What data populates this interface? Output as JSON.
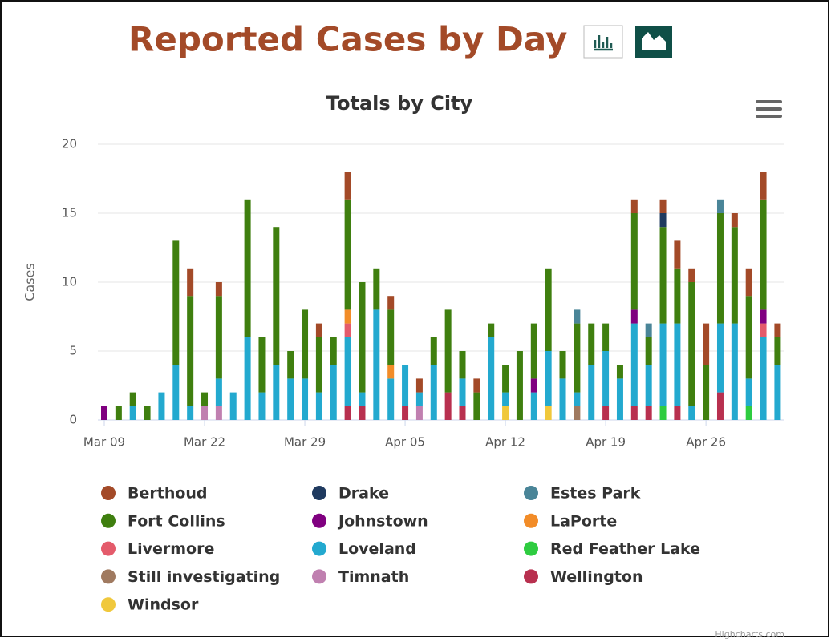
{
  "header": {
    "title": "Reported Cases by Day"
  },
  "chart_data": {
    "type": "stacked_bar",
    "title": "Totals by City",
    "y_label": "Cases",
    "categories": [
      "Mar 09",
      null,
      null,
      null,
      null,
      null,
      null,
      "Mar 22",
      null,
      null,
      null,
      null,
      null,
      null,
      "Mar 29",
      null,
      null,
      null,
      null,
      null,
      null,
      "Apr 05",
      null,
      null,
      null,
      null,
      null,
      null,
      "Apr 12",
      null,
      null,
      null,
      null,
      null,
      null,
      "Apr 19",
      null,
      null,
      null,
      null,
      null,
      null,
      "Apr 26",
      null,
      null,
      null,
      null,
      null
    ],
    "ylim": [
      0,
      20
    ],
    "yticks": [
      0,
      5,
      10,
      15,
      20
    ],
    "grid": true,
    "legend": "bottom",
    "series": [
      {
        "name": "Berthoud",
        "color": "#a34a28",
        "values": [
          0,
          0,
          0,
          0,
          0,
          0,
          2,
          0,
          1,
          0,
          0,
          0,
          0,
          0,
          0,
          1,
          0,
          2,
          0,
          0,
          1,
          0,
          1,
          0,
          0,
          0,
          1,
          0,
          0,
          0,
          0,
          0,
          0,
          0,
          0,
          0,
          0,
          1,
          0,
          1,
          2,
          1,
          3,
          0,
          1,
          2,
          2,
          1
        ]
      },
      {
        "name": "Drake",
        "color": "#1f3a5f",
        "values": [
          0,
          0,
          0,
          0,
          0,
          0,
          0,
          0,
          0,
          0,
          0,
          0,
          0,
          0,
          0,
          0,
          0,
          0,
          0,
          0,
          0,
          0,
          0,
          0,
          0,
          0,
          0,
          0,
          0,
          0,
          0,
          0,
          0,
          0,
          0,
          0,
          0,
          0,
          0,
          1,
          0,
          0,
          0,
          0,
          0,
          0,
          0,
          0
        ]
      },
      {
        "name": "Estes Park",
        "color": "#4a8598",
        "values": [
          0,
          0,
          0,
          0,
          0,
          0,
          0,
          0,
          0,
          0,
          0,
          0,
          0,
          0,
          0,
          0,
          0,
          0,
          0,
          0,
          0,
          0,
          0,
          0,
          0,
          0,
          0,
          0,
          0,
          0,
          0,
          0,
          0,
          1,
          0,
          0,
          0,
          0,
          1,
          0,
          0,
          0,
          0,
          1,
          0,
          0,
          0,
          0
        ]
      },
      {
        "name": "Fort Collins",
        "color": "#3f7f0f",
        "values": [
          0,
          1,
          1,
          1,
          0,
          9,
          8,
          1,
          6,
          0,
          10,
          4,
          10,
          2,
          5,
          4,
          2,
          8,
          8,
          3,
          4,
          0,
          0,
          2,
          6,
          2,
          2,
          1,
          2,
          5,
          4,
          6,
          2,
          5,
          3,
          2,
          1,
          7,
          2,
          7,
          4,
          9,
          4,
          8,
          7,
          6,
          8,
          2
        ]
      },
      {
        "name": "Johnstown",
        "color": "#800080",
        "values": [
          1,
          0,
          0,
          0,
          0,
          0,
          0,
          0,
          0,
          0,
          0,
          0,
          0,
          0,
          0,
          0,
          0,
          0,
          0,
          0,
          0,
          0,
          0,
          0,
          0,
          0,
          0,
          0,
          0,
          0,
          1,
          0,
          0,
          0,
          0,
          0,
          0,
          1,
          0,
          0,
          0,
          0,
          0,
          0,
          0,
          0,
          1,
          0
        ]
      },
      {
        "name": "LaPorte",
        "color": "#f28c28",
        "values": [
          0,
          0,
          0,
          0,
          0,
          0,
          0,
          0,
          0,
          0,
          0,
          0,
          0,
          0,
          0,
          0,
          0,
          1,
          0,
          0,
          1,
          0,
          0,
          0,
          0,
          0,
          0,
          0,
          0,
          0,
          0,
          0,
          0,
          0,
          0,
          0,
          0,
          0,
          0,
          0,
          0,
          0,
          0,
          0,
          0,
          0,
          0,
          0
        ]
      },
      {
        "name": "Livermore",
        "color": "#e45b6b",
        "values": [
          0,
          0,
          0,
          0,
          0,
          0,
          0,
          0,
          0,
          0,
          0,
          0,
          0,
          0,
          0,
          0,
          0,
          1,
          0,
          0,
          0,
          0,
          0,
          0,
          0,
          0,
          0,
          0,
          0,
          0,
          0,
          0,
          0,
          0,
          0,
          0,
          0,
          0,
          0,
          0,
          0,
          0,
          0,
          0,
          0,
          0,
          1,
          0
        ]
      },
      {
        "name": "Loveland",
        "color": "#23a9cf",
        "values": [
          0,
          0,
          1,
          0,
          2,
          4,
          1,
          0,
          2,
          2,
          6,
          2,
          4,
          3,
          3,
          2,
          4,
          5,
          1,
          8,
          3,
          3,
          1,
          4,
          0,
          2,
          0,
          6,
          1,
          0,
          2,
          4,
          3,
          1,
          4,
          4,
          3,
          6,
          3,
          6,
          6,
          1,
          0,
          5,
          7,
          2,
          6,
          4
        ]
      },
      {
        "name": "Red Feather Lake",
        "color": "#2ecc40",
        "values": [
          0,
          0,
          0,
          0,
          0,
          0,
          0,
          0,
          0,
          0,
          0,
          0,
          0,
          0,
          0,
          0,
          0,
          0,
          0,
          0,
          0,
          0,
          0,
          0,
          0,
          0,
          0,
          0,
          0,
          0,
          0,
          0,
          0,
          0,
          0,
          0,
          0,
          0,
          0,
          1,
          0,
          0,
          0,
          0,
          0,
          1,
          0,
          0
        ]
      },
      {
        "name": "Still investigating",
        "color": "#a07a60",
        "values": [
          0,
          0,
          0,
          0,
          0,
          0,
          0,
          0,
          0,
          0,
          0,
          0,
          0,
          0,
          0,
          0,
          0,
          0,
          0,
          0,
          0,
          0,
          0,
          0,
          0,
          0,
          0,
          0,
          0,
          0,
          0,
          0,
          0,
          1,
          0,
          0,
          0,
          0,
          0,
          0,
          0,
          0,
          0,
          0,
          0,
          0,
          0,
          0
        ]
      },
      {
        "name": "Timnath",
        "color": "#c080b0",
        "values": [
          0,
          0,
          0,
          0,
          0,
          0,
          0,
          1,
          1,
          0,
          0,
          0,
          0,
          0,
          0,
          0,
          0,
          0,
          0,
          0,
          0,
          0,
          1,
          0,
          0,
          0,
          0,
          0,
          0,
          0,
          0,
          0,
          0,
          0,
          0,
          0,
          0,
          0,
          0,
          0,
          0,
          0,
          0,
          0,
          0,
          0,
          0,
          0
        ]
      },
      {
        "name": "Wellington",
        "color": "#b8304f",
        "values": [
          0,
          0,
          0,
          0,
          0,
          0,
          0,
          0,
          0,
          0,
          0,
          0,
          0,
          0,
          0,
          0,
          0,
          1,
          1,
          0,
          0,
          1,
          0,
          0,
          2,
          1,
          0,
          0,
          0,
          0,
          0,
          0,
          0,
          0,
          0,
          1,
          0,
          1,
          1,
          0,
          1,
          0,
          0,
          2,
          0,
          0,
          0,
          0
        ]
      },
      {
        "name": "Windsor",
        "color": "#f0c83c",
        "values": [
          0,
          0,
          0,
          0,
          0,
          0,
          0,
          0,
          0,
          0,
          0,
          0,
          0,
          0,
          0,
          0,
          0,
          0,
          0,
          0,
          0,
          0,
          0,
          0,
          0,
          0,
          0,
          0,
          1,
          0,
          0,
          1,
          0,
          0,
          0,
          0,
          0,
          0,
          0,
          0,
          0,
          0,
          0,
          0,
          0,
          0,
          0,
          0
        ]
      }
    ],
    "credit": "Highcharts.com"
  }
}
